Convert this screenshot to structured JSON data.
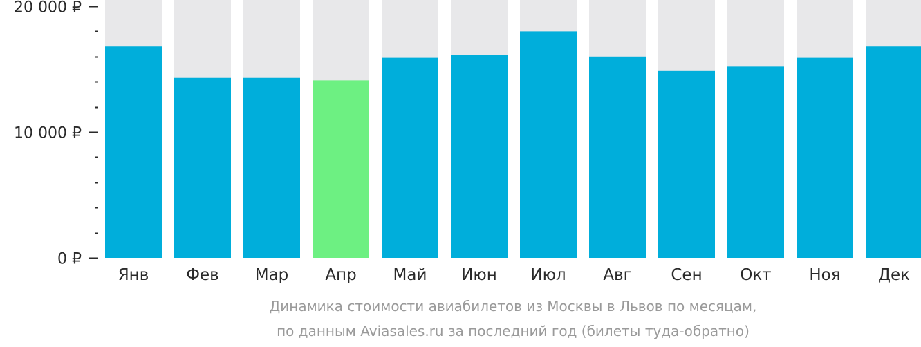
{
  "chart_data": {
    "type": "bar",
    "categories": [
      "Янв",
      "Фев",
      "Мар",
      "Апр",
      "Май",
      "Июн",
      "Июл",
      "Авг",
      "Сен",
      "Окт",
      "Ноя",
      "Дек"
    ],
    "values": [
      16800,
      14300,
      14300,
      14100,
      15900,
      16100,
      18000,
      16000,
      14900,
      15200,
      15900,
      16800
    ],
    "highlight_index": 3,
    "ylim": [
      0,
      20000
    ],
    "yticks": [
      {
        "value": 0,
        "label": "0 ₽"
      },
      {
        "value": 10000,
        "label": "10 000 ₽"
      },
      {
        "value": 20000,
        "label": "20 000 ₽"
      }
    ],
    "minor_tick_step": 2000,
    "grid": false,
    "colors": {
      "bar": "#00aedb",
      "highlight": "#6df082",
      "background_bar": "#e8e8ea",
      "tick": "#2a2a2a"
    },
    "caption_lines": [
      "Динамика стоимости авиабилетов из Москвы в Львов по месяцам,",
      "по данным Aviasales.ru за последний год (билеты туда-обратно)"
    ]
  }
}
